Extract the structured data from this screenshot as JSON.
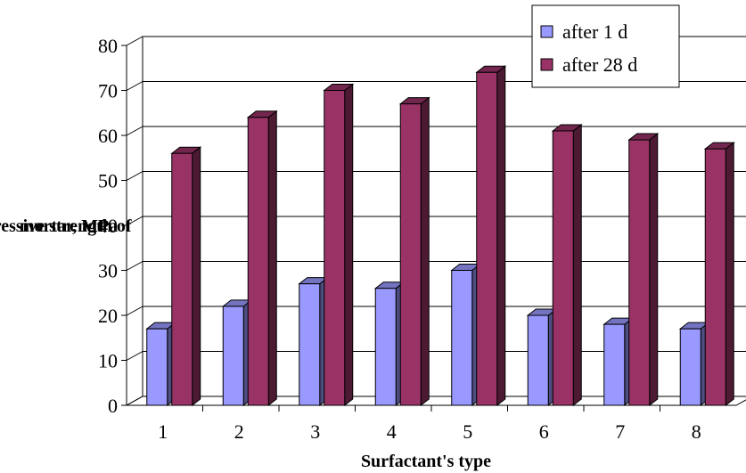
{
  "chart_data": {
    "type": "bar",
    "categories": [
      "1",
      "2",
      "3",
      "4",
      "5",
      "6",
      "7",
      "8"
    ],
    "series": [
      {
        "name": "after 1 d",
        "color": "#9999ff",
        "values": [
          17,
          22,
          27,
          26,
          30,
          20,
          18,
          17
        ]
      },
      {
        "name": "after 28 d",
        "color": "#993366",
        "values": [
          56,
          64,
          70,
          67,
          74,
          61,
          59,
          57
        ]
      }
    ],
    "xlabel": "Surfactant's type",
    "ylabel": [
      "Compressive strength of",
      "mortar, MPa"
    ],
    "ylim": [
      0,
      80
    ],
    "yticks": [
      "0",
      "10",
      "20",
      "30",
      "40",
      "50",
      "60",
      "70",
      "80"
    ],
    "grid": true,
    "legend_position": "top-right",
    "three_d": true
  }
}
